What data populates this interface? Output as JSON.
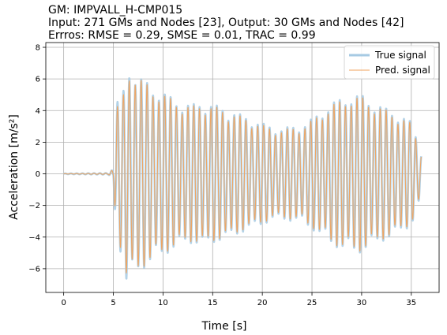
{
  "chart_data": {
    "type": "line",
    "title_lines": [
      "GM: IMPVALL_H-CMP015",
      "Input: 271 GMs and Nodes [23], Output: 30 GMs and Nodes [42]",
      "Errros: RMSE = 0.29, SMSE = 0.01, TRAC = 0.99"
    ],
    "xlabel": "Time [s]",
    "ylabel": "Acceleration [m/s²]",
    "xlim": [
      -1.8,
      37.8
    ],
    "ylim": [
      -7.5,
      8.3
    ],
    "xticks": [
      0,
      5,
      10,
      15,
      20,
      25,
      30,
      35
    ],
    "yticks": [
      -6,
      -4,
      -2,
      0,
      2,
      4,
      6,
      8
    ],
    "grid": true,
    "legend_position": "top-right",
    "duration": 36,
    "series": [
      {
        "name": "True signal",
        "color": "#a6cae3",
        "envelope": [
          [
            0,
            0.02
          ],
          [
            4.5,
            0.05
          ],
          [
            5,
            0.3
          ],
          [
            5.3,
            4.5
          ],
          [
            6,
            5.2
          ],
          [
            6.3,
            7.0
          ],
          [
            7,
            6.5
          ],
          [
            8,
            6.0
          ],
          [
            9,
            5.5
          ],
          [
            10,
            5.2
          ],
          [
            11,
            4.8
          ],
          [
            12,
            4.5
          ],
          [
            13,
            4.4
          ],
          [
            14,
            4.6
          ],
          [
            15,
            4.4
          ],
          [
            16,
            4.2
          ],
          [
            17,
            4.0
          ],
          [
            18,
            3.7
          ],
          [
            19,
            3.5
          ],
          [
            20,
            3.2
          ],
          [
            21,
            3.0
          ],
          [
            22,
            2.9
          ],
          [
            23,
            3.0
          ],
          [
            24,
            3.1
          ],
          [
            25,
            3.5
          ],
          [
            26,
            4.0
          ],
          [
            27,
            4.5
          ],
          [
            28,
            4.8
          ],
          [
            29,
            5.0
          ],
          [
            30,
            5.0
          ],
          [
            31,
            4.6
          ],
          [
            32,
            4.3
          ],
          [
            33,
            4.0
          ],
          [
            34,
            3.7
          ],
          [
            35,
            3.3
          ],
          [
            36,
            1.5
          ]
        ]
      },
      {
        "name": "Pred. signal",
        "color": "#f0a35e",
        "envelope": [
          [
            0,
            0.01
          ],
          [
            4.5,
            0.04
          ],
          [
            5,
            0.3
          ],
          [
            5.3,
            4.2
          ],
          [
            6,
            5.0
          ],
          [
            6.3,
            6.6
          ],
          [
            7,
            6.5
          ],
          [
            8,
            5.9
          ],
          [
            9,
            5.4
          ],
          [
            10,
            5.1
          ],
          [
            11,
            4.7
          ],
          [
            12,
            4.4
          ],
          [
            13,
            4.3
          ],
          [
            14,
            4.5
          ],
          [
            15,
            4.3
          ],
          [
            16,
            4.1
          ],
          [
            17,
            3.9
          ],
          [
            18,
            3.6
          ],
          [
            19,
            3.4
          ],
          [
            20,
            3.1
          ],
          [
            21,
            2.9
          ],
          [
            22,
            2.8
          ],
          [
            23,
            2.9
          ],
          [
            24,
            3.0
          ],
          [
            25,
            3.4
          ],
          [
            26,
            3.9
          ],
          [
            27,
            4.4
          ],
          [
            28,
            4.7
          ],
          [
            29,
            4.9
          ],
          [
            30,
            4.9
          ],
          [
            31,
            4.5
          ],
          [
            32,
            4.2
          ],
          [
            33,
            3.9
          ],
          [
            34,
            3.6
          ],
          [
            35,
            3.2
          ],
          [
            36,
            1.4
          ]
        ]
      }
    ],
    "dominant_frequency_hz": 1.7
  }
}
